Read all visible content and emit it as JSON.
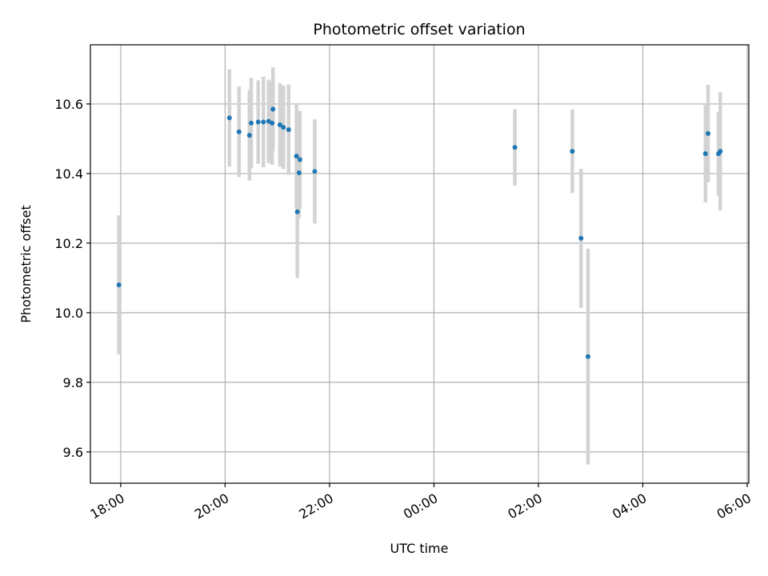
{
  "chart_data": {
    "type": "scatter",
    "title": "Photometric offset variation",
    "xlabel": "UTC time",
    "ylabel": "Photometric offset",
    "x_tick_labels": [
      "18:00",
      "20:00",
      "22:00",
      "00:00",
      "02:00",
      "04:00",
      "06:00"
    ],
    "y_tick_labels": [
      "9.6",
      "9.8",
      "10.0",
      "10.2",
      "10.4",
      "10.6"
    ],
    "x_ticks_hours": [
      0,
      2,
      4,
      6,
      8,
      10,
      12
    ],
    "x_start_label": "18:00",
    "xlim_hours": [
      -0.58,
      12.03
    ],
    "y_ticks": [
      9.6,
      9.8,
      10.0,
      10.2,
      10.4,
      10.6
    ],
    "ylim": [
      9.51,
      10.77
    ],
    "grid": true,
    "colors": {
      "point": "#1f77b4",
      "errorbar": "#d3d3d3",
      "grid": "#b0b0b0",
      "axis": "#000000"
    },
    "points": [
      {
        "time": "17:58",
        "y": 10.08,
        "err": 0.2
      },
      {
        "time": "20:05",
        "y": 10.56,
        "err": 0.14
      },
      {
        "time": "20:16",
        "y": 10.52,
        "err": 0.13
      },
      {
        "time": "20:28",
        "y": 10.51,
        "err": 0.13
      },
      {
        "time": "20:30",
        "y": 10.545,
        "err": 0.13
      },
      {
        "time": "20:38",
        "y": 10.548,
        "err": 0.12
      },
      {
        "time": "20:44",
        "y": 10.548,
        "err": 0.13
      },
      {
        "time": "20:50",
        "y": 10.55,
        "err": 0.12
      },
      {
        "time": "20:54",
        "y": 10.545,
        "err": 0.12
      },
      {
        "time": "20:55",
        "y": 10.585,
        "err": 0.12
      },
      {
        "time": "21:03",
        "y": 10.54,
        "err": 0.12
      },
      {
        "time": "21:07",
        "y": 10.533,
        "err": 0.12
      },
      {
        "time": "21:13",
        "y": 10.526,
        "err": 0.13
      },
      {
        "time": "21:22",
        "y": 10.45,
        "err": 0.15
      },
      {
        "time": "21:23",
        "y": 10.29,
        "err": 0.19
      },
      {
        "time": "21:25",
        "y": 10.402,
        "err": 0.13
      },
      {
        "time": "21:26",
        "y": 10.44,
        "err": 0.14
      },
      {
        "time": "21:43",
        "y": 10.406,
        "err": 0.15
      },
      {
        "time": "01:33",
        "y": 10.475,
        "err": 0.11
      },
      {
        "time": "02:39",
        "y": 10.464,
        "err": 0.12
      },
      {
        "time": "02:49",
        "y": 10.214,
        "err": 0.2
      },
      {
        "time": "02:57",
        "y": 9.874,
        "err": 0.31
      },
      {
        "time": "05:12",
        "y": 10.457,
        "err": 0.14
      },
      {
        "time": "05:15",
        "y": 10.515,
        "err": 0.14
      },
      {
        "time": "05:27",
        "y": 10.457,
        "err": 0.12
      },
      {
        "time": "05:29",
        "y": 10.464,
        "err": 0.17
      }
    ]
  }
}
